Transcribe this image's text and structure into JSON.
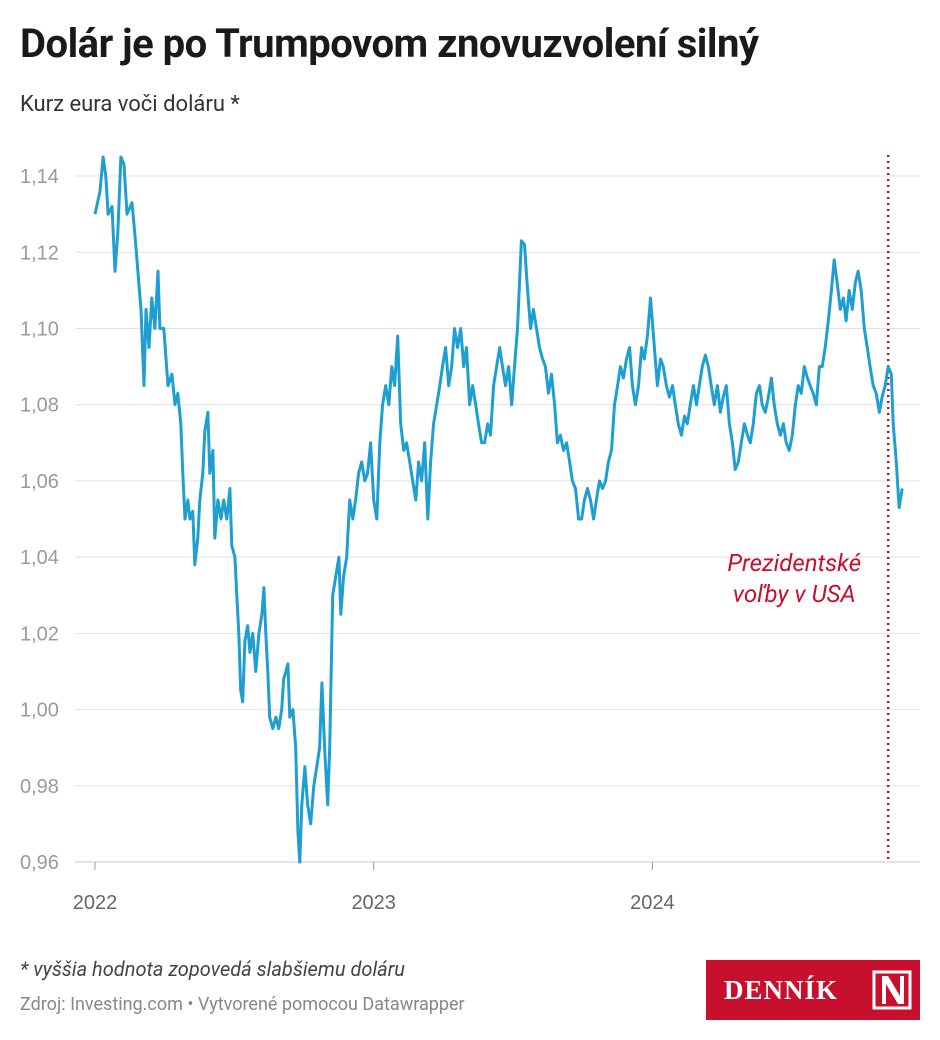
{
  "chart_data": {
    "type": "line",
    "title": "Dolár je po Trumpovom znovuzvolení silný",
    "subtitle": "Kurz eura voči doláru *",
    "note": "* vyššia hodnota zopovedá slabšiemu doláru",
    "source": "Zdroj: Investing.com • Vytvorené pomocou Datawrapper",
    "logo": "DENNÍK",
    "color": "#1f9fd1",
    "grid": true,
    "xlim": [
      2021.731,
      2024.96
    ],
    "xticks": [
      2022,
      2023,
      2024
    ],
    "ylim": [
      0.96,
      1.145
    ],
    "yticks": [
      {
        "value": 0.96,
        "label": "0,96"
      },
      {
        "value": 0.98,
        "label": "0,98"
      },
      {
        "value": 1.0,
        "label": "1,00"
      },
      {
        "value": 1.02,
        "label": "1,02"
      },
      {
        "value": 1.04,
        "label": "1,04"
      },
      {
        "value": 1.06,
        "label": "1,06"
      },
      {
        "value": 1.08,
        "label": "1,08"
      },
      {
        "value": 1.1,
        "label": "1,10"
      },
      {
        "value": 1.12,
        "label": "1,12"
      },
      {
        "value": 1.14,
        "label": "1,14"
      }
    ],
    "annotation": {
      "text": "Prezidentské voľby v USA",
      "x": 2024.846,
      "color": "#c8102e"
    },
    "x": [
      2022.0,
      2022.018,
      2022.029,
      2022.039,
      2022.047,
      2022.061,
      2022.072,
      2022.082,
      2022.093,
      2022.104,
      2022.115,
      2022.133,
      2022.143,
      2022.154,
      2022.165,
      2022.176,
      2022.183,
      2022.194,
      2022.204,
      2022.215,
      2022.226,
      2022.233,
      2022.247,
      2022.262,
      2022.276,
      2022.287,
      2022.297,
      2022.308,
      2022.315,
      2022.323,
      2022.333,
      2022.341,
      2022.351,
      2022.358,
      2022.369,
      2022.376,
      2022.387,
      2022.394,
      2022.405,
      2022.412,
      2022.423,
      2022.43,
      2022.441,
      2022.452,
      2022.462,
      2022.473,
      2022.484,
      2022.491,
      2022.502,
      2022.509,
      2022.516,
      2022.523,
      2022.53,
      2022.538,
      2022.548,
      2022.556,
      2022.566,
      2022.577,
      2022.588,
      2022.599,
      2022.606,
      2022.613,
      2022.62,
      2022.627,
      2022.638,
      2022.649,
      2022.659,
      2022.67,
      2022.677,
      2022.685,
      2022.692,
      2022.699,
      2022.71,
      2022.72,
      2022.728,
      2022.735,
      2022.742,
      2022.753,
      2022.763,
      2022.774,
      2022.785,
      2022.796,
      2022.806,
      2022.814,
      2022.824,
      2022.835,
      2022.842,
      2022.853,
      2022.864,
      2022.875,
      2022.882,
      2022.892,
      2022.903,
      2022.914,
      2022.925,
      2022.935,
      2022.946,
      2022.957,
      2022.968,
      2022.978,
      2022.989,
      2023.0,
      2023.011,
      2023.022,
      2023.032,
      2023.043,
      2023.054,
      2023.065,
      2023.075,
      2023.086,
      2023.097,
      2023.108,
      2023.118,
      2023.129,
      2023.14,
      2023.151,
      2023.161,
      2023.172,
      2023.183,
      2023.194,
      2023.204,
      2023.215,
      2023.226,
      2023.237,
      2023.247,
      2023.258,
      2023.269,
      2023.28,
      2023.29,
      2023.301,
      2023.312,
      2023.323,
      2023.333,
      2023.344,
      2023.355,
      2023.366,
      2023.376,
      2023.387,
      2023.398,
      2023.409,
      2023.419,
      2023.43,
      2023.441,
      2023.452,
      2023.462,
      2023.473,
      2023.484,
      2023.495,
      2023.505,
      2023.516,
      2023.523,
      2023.53,
      2023.541,
      2023.552,
      2023.563,
      2023.573,
      2023.584,
      2023.595,
      2023.606,
      2023.616,
      2023.627,
      2023.638,
      2023.649,
      2023.659,
      2023.67,
      2023.681,
      2023.692,
      2023.703,
      2023.713,
      2023.724,
      2023.735,
      2023.746,
      2023.756,
      2023.767,
      2023.778,
      2023.789,
      2023.799,
      2023.81,
      2023.821,
      2023.832,
      2023.842,
      2023.853,
      2023.864,
      2023.875,
      2023.885,
      2023.896,
      2023.907,
      2023.918,
      2023.928,
      2023.939,
      2023.95,
      2023.961,
      2023.971,
      2023.982,
      2023.993,
      2024.007,
      2024.018,
      2024.029,
      2024.039,
      2024.05,
      2024.061,
      2024.072,
      2024.082,
      2024.093,
      2024.104,
      2024.115,
      2024.125,
      2024.136,
      2024.147,
      2024.158,
      2024.168,
      2024.179,
      2024.19,
      2024.201,
      2024.211,
      2024.222,
      2024.233,
      2024.244,
      2024.254,
      2024.265,
      2024.276,
      2024.287,
      2024.297,
      2024.308,
      2024.319,
      2024.33,
      2024.341,
      2024.351,
      2024.362,
      2024.373,
      2024.384,
      2024.394,
      2024.405,
      2024.416,
      2024.427,
      2024.437,
      2024.448,
      2024.459,
      2024.47,
      2024.48,
      2024.491,
      2024.502,
      2024.513,
      2024.523,
      2024.534,
      2024.545,
      2024.556,
      2024.566,
      2024.577,
      2024.588,
      2024.599,
      2024.609,
      2024.62,
      2024.631,
      2024.642,
      2024.652,
      2024.663,
      2024.674,
      2024.685,
      2024.695,
      2024.706,
      2024.717,
      2024.728,
      2024.738,
      2024.749,
      2024.76,
      2024.771,
      2024.781,
      2024.792,
      2024.803,
      2024.814,
      2024.824,
      2024.835,
      2024.846,
      2024.857,
      2024.864,
      2024.875,
      2024.885,
      2024.896
    ],
    "values": [
      1.13,
      1.136,
      1.145,
      1.14,
      1.13,
      1.132,
      1.115,
      1.125,
      1.145,
      1.143,
      1.13,
      1.133,
      1.125,
      1.115,
      1.105,
      1.085,
      1.105,
      1.095,
      1.108,
      1.1,
      1.115,
      1.1,
      1.1,
      1.085,
      1.088,
      1.08,
      1.083,
      1.075,
      1.062,
      1.05,
      1.055,
      1.05,
      1.052,
      1.038,
      1.045,
      1.055,
      1.062,
      1.073,
      1.078,
      1.062,
      1.068,
      1.045,
      1.055,
      1.05,
      1.055,
      1.05,
      1.058,
      1.043,
      1.04,
      1.03,
      1.02,
      1.005,
      1.002,
      1.018,
      1.022,
      1.015,
      1.02,
      1.01,
      1.02,
      1.025,
      1.032,
      1.02,
      1.01,
      0.998,
      0.995,
      0.998,
      0.995,
      1.0,
      1.008,
      1.01,
      1.012,
      0.998,
      1.0,
      0.99,
      0.968,
      0.96,
      0.975,
      0.985,
      0.975,
      0.97,
      0.98,
      0.985,
      0.99,
      1.007,
      0.99,
      0.975,
      0.99,
      1.03,
      1.035,
      1.04,
      1.025,
      1.035,
      1.04,
      1.055,
      1.05,
      1.055,
      1.062,
      1.065,
      1.06,
      1.062,
      1.07,
      1.055,
      1.05,
      1.07,
      1.08,
      1.085,
      1.08,
      1.09,
      1.085,
      1.098,
      1.075,
      1.068,
      1.07,
      1.065,
      1.06,
      1.055,
      1.065,
      1.06,
      1.07,
      1.05,
      1.065,
      1.075,
      1.08,
      1.085,
      1.09,
      1.095,
      1.085,
      1.09,
      1.1,
      1.095,
      1.1,
      1.09,
      1.095,
      1.08,
      1.085,
      1.08,
      1.075,
      1.07,
      1.07,
      1.075,
      1.072,
      1.085,
      1.09,
      1.095,
      1.09,
      1.085,
      1.09,
      1.08,
      1.09,
      1.1,
      1.112,
      1.123,
      1.122,
      1.11,
      1.1,
      1.105,
      1.1,
      1.095,
      1.092,
      1.09,
      1.083,
      1.088,
      1.08,
      1.07,
      1.072,
      1.068,
      1.07,
      1.065,
      1.06,
      1.058,
      1.05,
      1.05,
      1.055,
      1.058,
      1.055,
      1.05,
      1.055,
      1.06,
      1.058,
      1.06,
      1.065,
      1.068,
      1.08,
      1.085,
      1.09,
      1.087,
      1.092,
      1.095,
      1.085,
      1.08,
      1.085,
      1.095,
      1.092,
      1.098,
      1.108,
      1.095,
      1.085,
      1.092,
      1.09,
      1.085,
      1.082,
      1.085,
      1.08,
      1.075,
      1.072,
      1.077,
      1.075,
      1.08,
      1.085,
      1.08,
      1.085,
      1.09,
      1.093,
      1.09,
      1.085,
      1.08,
      1.085,
      1.078,
      1.082,
      1.085,
      1.075,
      1.07,
      1.063,
      1.065,
      1.07,
      1.075,
      1.072,
      1.07,
      1.075,
      1.083,
      1.085,
      1.08,
      1.078,
      1.082,
      1.087,
      1.08,
      1.075,
      1.072,
      1.075,
      1.07,
      1.068,
      1.072,
      1.08,
      1.085,
      1.083,
      1.09,
      1.087,
      1.085,
      1.083,
      1.08,
      1.09,
      1.09,
      1.095,
      1.102,
      1.11,
      1.118,
      1.112,
      1.105,
      1.108,
      1.102,
      1.11,
      1.105,
      1.112,
      1.115,
      1.11,
      1.1,
      1.095,
      1.09,
      1.085,
      1.083,
      1.078,
      1.082,
      1.085,
      1.09,
      1.088,
      1.075,
      1.065,
      1.053,
      1.058
    ]
  }
}
